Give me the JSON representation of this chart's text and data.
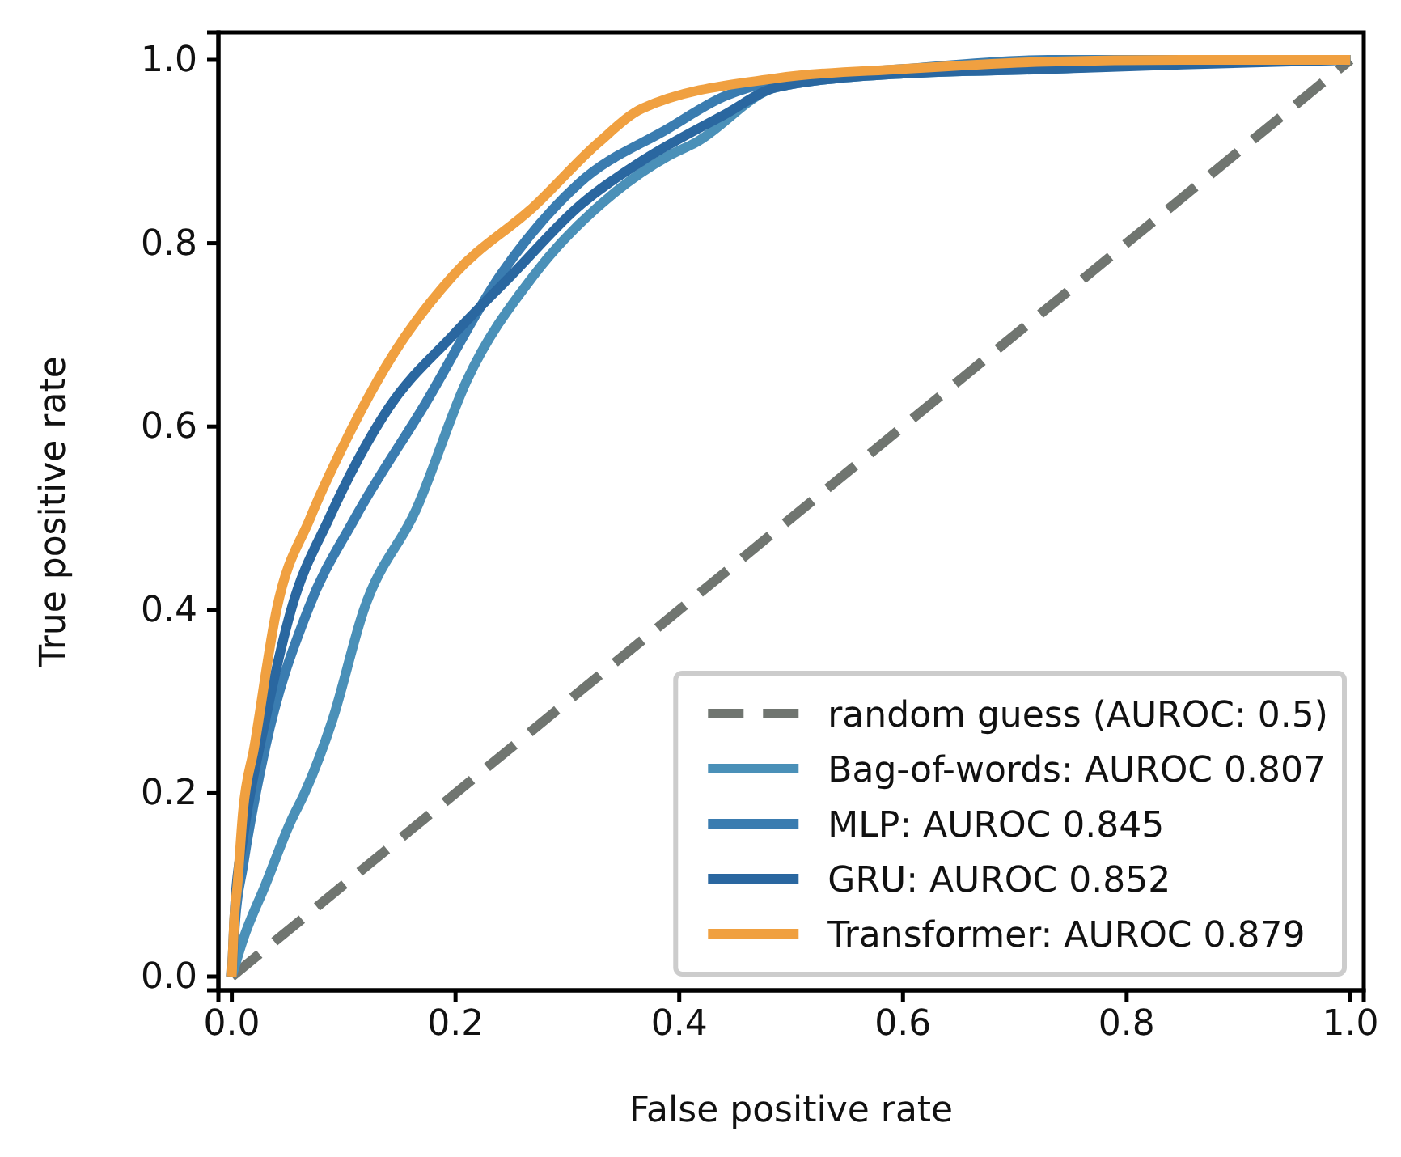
{
  "chart_data": {
    "type": "line",
    "xlabel": "False positive rate",
    "ylabel": "True positive rate",
    "xlim": [
      -0.012,
      1.012
    ],
    "ylim": [
      -0.015,
      1.03
    ],
    "xticks": [
      {
        "value": 0,
        "label": "0.0"
      },
      0.2,
      0.4,
      0.6,
      0.8,
      {
        "value": 1,
        "label": "1.0"
      }
    ],
    "yticks": [
      {
        "value": 0,
        "label": "0.0"
      },
      0.2,
      0.4,
      0.6,
      0.8,
      {
        "value": 1,
        "label": "1.0"
      }
    ],
    "legend": "bottom right",
    "grid": false,
    "series": [
      {
        "name": "random guess (AUROC: 0.5)",
        "color": "#707570",
        "line_style": "dashed",
        "x": [
          0,
          1
        ],
        "values": [
          0,
          1
        ]
      },
      {
        "name": "Bag-of-words: AUROC 0.807",
        "color": "#4a90b8",
        "x": [
          0,
          0.01,
          0.03,
          0.053,
          0.065,
          0.09,
          0.118,
          0.165,
          0.21,
          0.27,
          0.34,
          0.39,
          0.415,
          0.487,
          0.6,
          0.73,
          0.85,
          1
        ],
        "values": [
          0,
          0.04,
          0.1,
          0.17,
          0.2,
          0.28,
          0.4,
          0.51,
          0.65,
          0.765,
          0.853,
          0.895,
          0.91,
          0.97,
          0.985,
          0.99,
          0.997,
          1
        ]
      },
      {
        "name": "MLP: AUROC 0.845",
        "color": "#3a7cb0",
        "x": [
          0,
          0.003,
          0.01,
          0.03,
          0.068,
          0.11,
          0.173,
          0.24,
          0.31,
          0.39,
          0.44,
          0.487,
          0.6,
          0.73,
          0.85,
          1
        ],
        "values": [
          0,
          0.06,
          0.12,
          0.25,
          0.4,
          0.5,
          0.625,
          0.765,
          0.865,
          0.925,
          0.96,
          0.977,
          0.99,
          1,
          1,
          1
        ]
      },
      {
        "name": "GRU: AUROC 0.852",
        "color": "#2a67a0",
        "x": [
          0,
          0.003,
          0.01,
          0.03,
          0.053,
          0.087,
          0.14,
          0.198,
          0.25,
          0.31,
          0.367,
          0.44,
          0.487,
          0.6,
          0.73,
          0.85,
          1
        ],
        "values": [
          0,
          0.08,
          0.15,
          0.28,
          0.4,
          0.5,
          0.62,
          0.7,
          0.765,
          0.84,
          0.89,
          0.94,
          0.97,
          0.985,
          0.99,
          0.995,
          1
        ]
      },
      {
        "name": "Transformer: AUROC 0.879",
        "color": "#f0a040",
        "x": [
          0,
          0.002,
          0.005,
          0.01,
          0.02,
          0.04,
          0.07,
          0.1,
          0.145,
          0.198,
          0.27,
          0.328,
          0.367,
          0.487,
          0.6,
          0.728,
          0.85,
          1
        ],
        "values": [
          0,
          0.06,
          0.1,
          0.18,
          0.25,
          0.4,
          0.5,
          0.58,
          0.68,
          0.765,
          0.84,
          0.91,
          0.947,
          0.98,
          0.99,
          0.998,
          1,
          1
        ]
      }
    ]
  }
}
